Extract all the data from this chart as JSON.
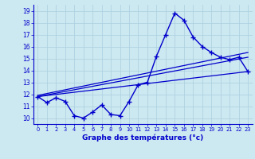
{
  "xlabel": "Graphe des températures (°c)",
  "hours": [
    0,
    1,
    2,
    3,
    4,
    5,
    6,
    7,
    8,
    9,
    10,
    11,
    12,
    13,
    14,
    15,
    16,
    17,
    18,
    19,
    20,
    21,
    22,
    23
  ],
  "temps": [
    11.8,
    11.3,
    11.7,
    11.4,
    10.2,
    10.0,
    10.5,
    11.1,
    10.3,
    10.2,
    11.4,
    12.8,
    13.0,
    15.2,
    17.0,
    18.8,
    18.2,
    16.8,
    16.0,
    15.5,
    15.1,
    14.9,
    15.1,
    13.9
  ],
  "line_color": "#0000cc",
  "bg_color": "#cce8f0",
  "plot_bg_color": "#cce8f0",
  "grid_color": "#aacfdf",
  "ylim": [
    9.5,
    19.5
  ],
  "xlim": [
    -0.5,
    23.5
  ],
  "yticks": [
    10,
    11,
    12,
    13,
    14,
    15,
    16,
    17,
    18,
    19
  ],
  "xticks": [
    0,
    1,
    2,
    3,
    4,
    5,
    6,
    7,
    8,
    9,
    10,
    11,
    12,
    13,
    14,
    15,
    16,
    17,
    18,
    19,
    20,
    21,
    22,
    23
  ],
  "reg_lines": [
    {
      "x0": 0,
      "y0": 11.8,
      "x1": 23,
      "y1": 13.9
    },
    {
      "x0": 0,
      "y0": 11.8,
      "x1": 23,
      "y1": 15.1
    },
    {
      "x0": 0,
      "y0": 11.9,
      "x1": 23,
      "y1": 15.5
    }
  ]
}
